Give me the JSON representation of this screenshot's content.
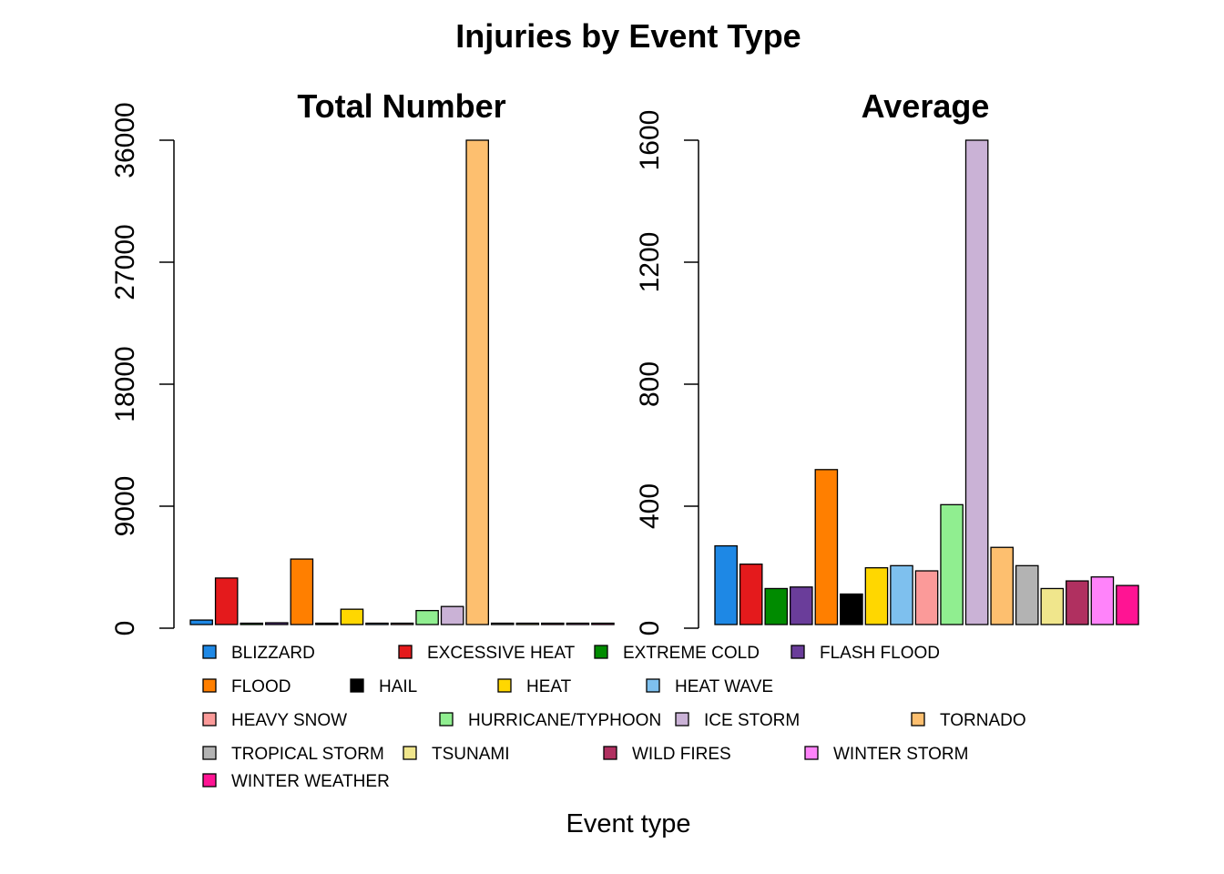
{
  "figure": {
    "title": "Injuries by Event Type",
    "xlabel": "Event type"
  },
  "legend": {
    "placement": "bottom",
    "entries": [
      {
        "label": "BLIZZARD",
        "color": "#1E88E5"
      },
      {
        "label": "EXCESSIVE HEAT",
        "color": "#E41A1C"
      },
      {
        "label": "EXTREME COLD",
        "color": "#008B00"
      },
      {
        "label": "FLASH FLOOD",
        "color": "#6A3D9A"
      },
      {
        "label": "FLOOD",
        "color": "#FF7F00"
      },
      {
        "label": "HAIL",
        "color": "#000000"
      },
      {
        "label": "HEAT",
        "color": "#FFD700"
      },
      {
        "label": "HEAT WAVE",
        "color": "#7EC0EE"
      },
      {
        "label": "HEAVY SNOW",
        "color": "#FB9A99"
      },
      {
        "label": "HURRICANE/TYPHOON",
        "color": "#90EE90"
      },
      {
        "label": "ICE STORM",
        "color": "#CAB2D6"
      },
      {
        "label": "TORNADO",
        "color": "#FDBF6F"
      },
      {
        "label": "TROPICAL STORM",
        "color": "#B3B3B3"
      },
      {
        "label": "TSUNAMI",
        "color": "#F0E68C"
      },
      {
        "label": "WILD FIRES",
        "color": "#B03060"
      },
      {
        "label": "WINTER STORM",
        "color": "#FF83FA"
      },
      {
        "label": "WINTER WEATHER",
        "color": "#FF1493"
      }
    ]
  },
  "chart_data": [
    {
      "type": "bar",
      "title": "Total Number",
      "categories": [
        "BLIZZARD",
        "EXCESSIVE HEAT",
        "EXTREME COLD",
        "FLASH FLOOD",
        "FLOOD",
        "HAIL",
        "HEAT",
        "HEAT WAVE",
        "HEAVY SNOW",
        "HURRICANE/TYPHOON",
        "ICE STORM",
        "TORNADO",
        "TROPICAL STORM",
        "TSUNAMI",
        "WILD FIRES",
        "WINTER STORM",
        "WINTER WEATHER"
      ],
      "values": [
        600,
        3700,
        200,
        400,
        5100,
        100,
        1400,
        250,
        200,
        1300,
        1600,
        36000,
        230,
        130,
        150,
        140,
        200
      ],
      "colors": [
        "#1E88E5",
        "#E41A1C",
        "#008B00",
        "#6A3D9A",
        "#FF7F00",
        "#000000",
        "#FFD700",
        "#7EC0EE",
        "#FB9A99",
        "#90EE90",
        "#CAB2D6",
        "#FDBF6F",
        "#B3B3B3",
        "#F0E68C",
        "#B03060",
        "#FF83FA",
        "#FF1493"
      ],
      "xlabel": "",
      "ylabel": "",
      "ylim": [
        0,
        36000
      ],
      "yticks": [
        0,
        9000,
        18000,
        27000,
        36000
      ],
      "ytick_labels": [
        "0",
        "9000",
        "18000",
        "27000",
        "36000"
      ],
      "grid": false
    },
    {
      "type": "bar",
      "title": "Average",
      "categories": [
        "BLIZZARD",
        "EXCESSIVE HEAT",
        "EXTREME COLD",
        "FLASH FLOOD",
        "FLOOD",
        "HAIL",
        "HEAT",
        "HEAT WAVE",
        "HEAVY SNOW",
        "HURRICANE/TYPHOON",
        "ICE STORM",
        "TORNADO",
        "TROPICAL STORM",
        "TSUNAMI",
        "WILD FIRES",
        "WINTER STORM",
        "WINTER WEATHER"
      ],
      "values": [
        270,
        210,
        130,
        135,
        520,
        112,
        198,
        205,
        188,
        405,
        1600,
        265,
        205,
        130,
        155,
        168,
        140
      ],
      "colors": [
        "#1E88E5",
        "#E41A1C",
        "#008B00",
        "#6A3D9A",
        "#FF7F00",
        "#000000",
        "#FFD700",
        "#7EC0EE",
        "#FB9A99",
        "#90EE90",
        "#CAB2D6",
        "#FDBF6F",
        "#B3B3B3",
        "#F0E68C",
        "#B03060",
        "#FF83FA",
        "#FF1493"
      ],
      "xlabel": "",
      "ylabel": "",
      "ylim": [
        0,
        1600
      ],
      "yticks": [
        0,
        400,
        800,
        1200,
        1600
      ],
      "ytick_labels": [
        "0",
        "400",
        "800",
        "1200",
        "1600"
      ],
      "grid": false
    }
  ]
}
